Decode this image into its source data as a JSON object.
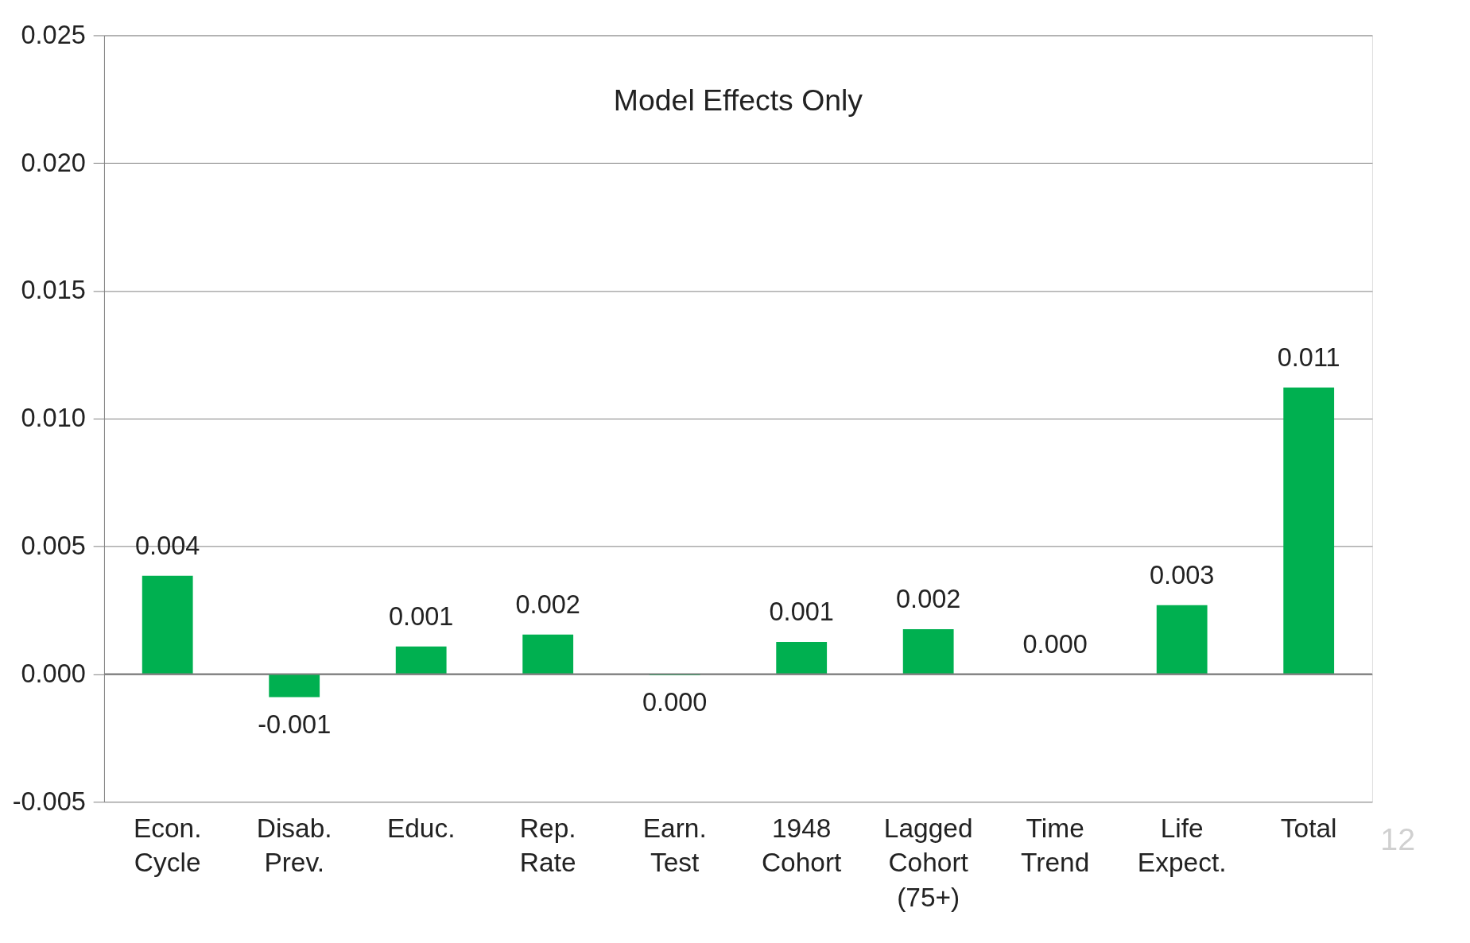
{
  "chart_data": {
    "type": "bar",
    "title": "Model Effects Only",
    "categories": [
      "Econ. Cycle",
      "Disab. Prev.",
      "Educ.",
      "Rep. Rate",
      "Earn. Test",
      "1948 Cohort",
      "Lagged Cohort (75+)",
      "Time Trend",
      "Life Expect.",
      "Total"
    ],
    "values": [
      0.00385,
      -0.0009,
      0.00108,
      0.00155,
      -5e-05,
      0.00126,
      0.00176,
      0.0,
      0.0027,
      0.01122
    ],
    "value_labels": [
      "0.004",
      "-0.001",
      "0.001",
      "0.002",
      "0.000",
      "0.001",
      "0.002",
      "0.000",
      "0.003",
      "0.011"
    ],
    "color": "#00b050",
    "ylim": [
      -0.005,
      0.025
    ],
    "yticks": [
      {
        "value": -0.005,
        "label": "-0.005"
      },
      {
        "value": 0,
        "label": "0.000"
      },
      {
        "value": 0.005,
        "label": "0.005"
      },
      {
        "value": 0.01,
        "label": "0.010"
      },
      {
        "value": 0.015,
        "label": "0.015"
      },
      {
        "value": 0.02,
        "label": "0.020"
      },
      {
        "value": 0.025,
        "label": "0.025"
      }
    ],
    "grid": "y",
    "annotations": [
      "12"
    ]
  }
}
